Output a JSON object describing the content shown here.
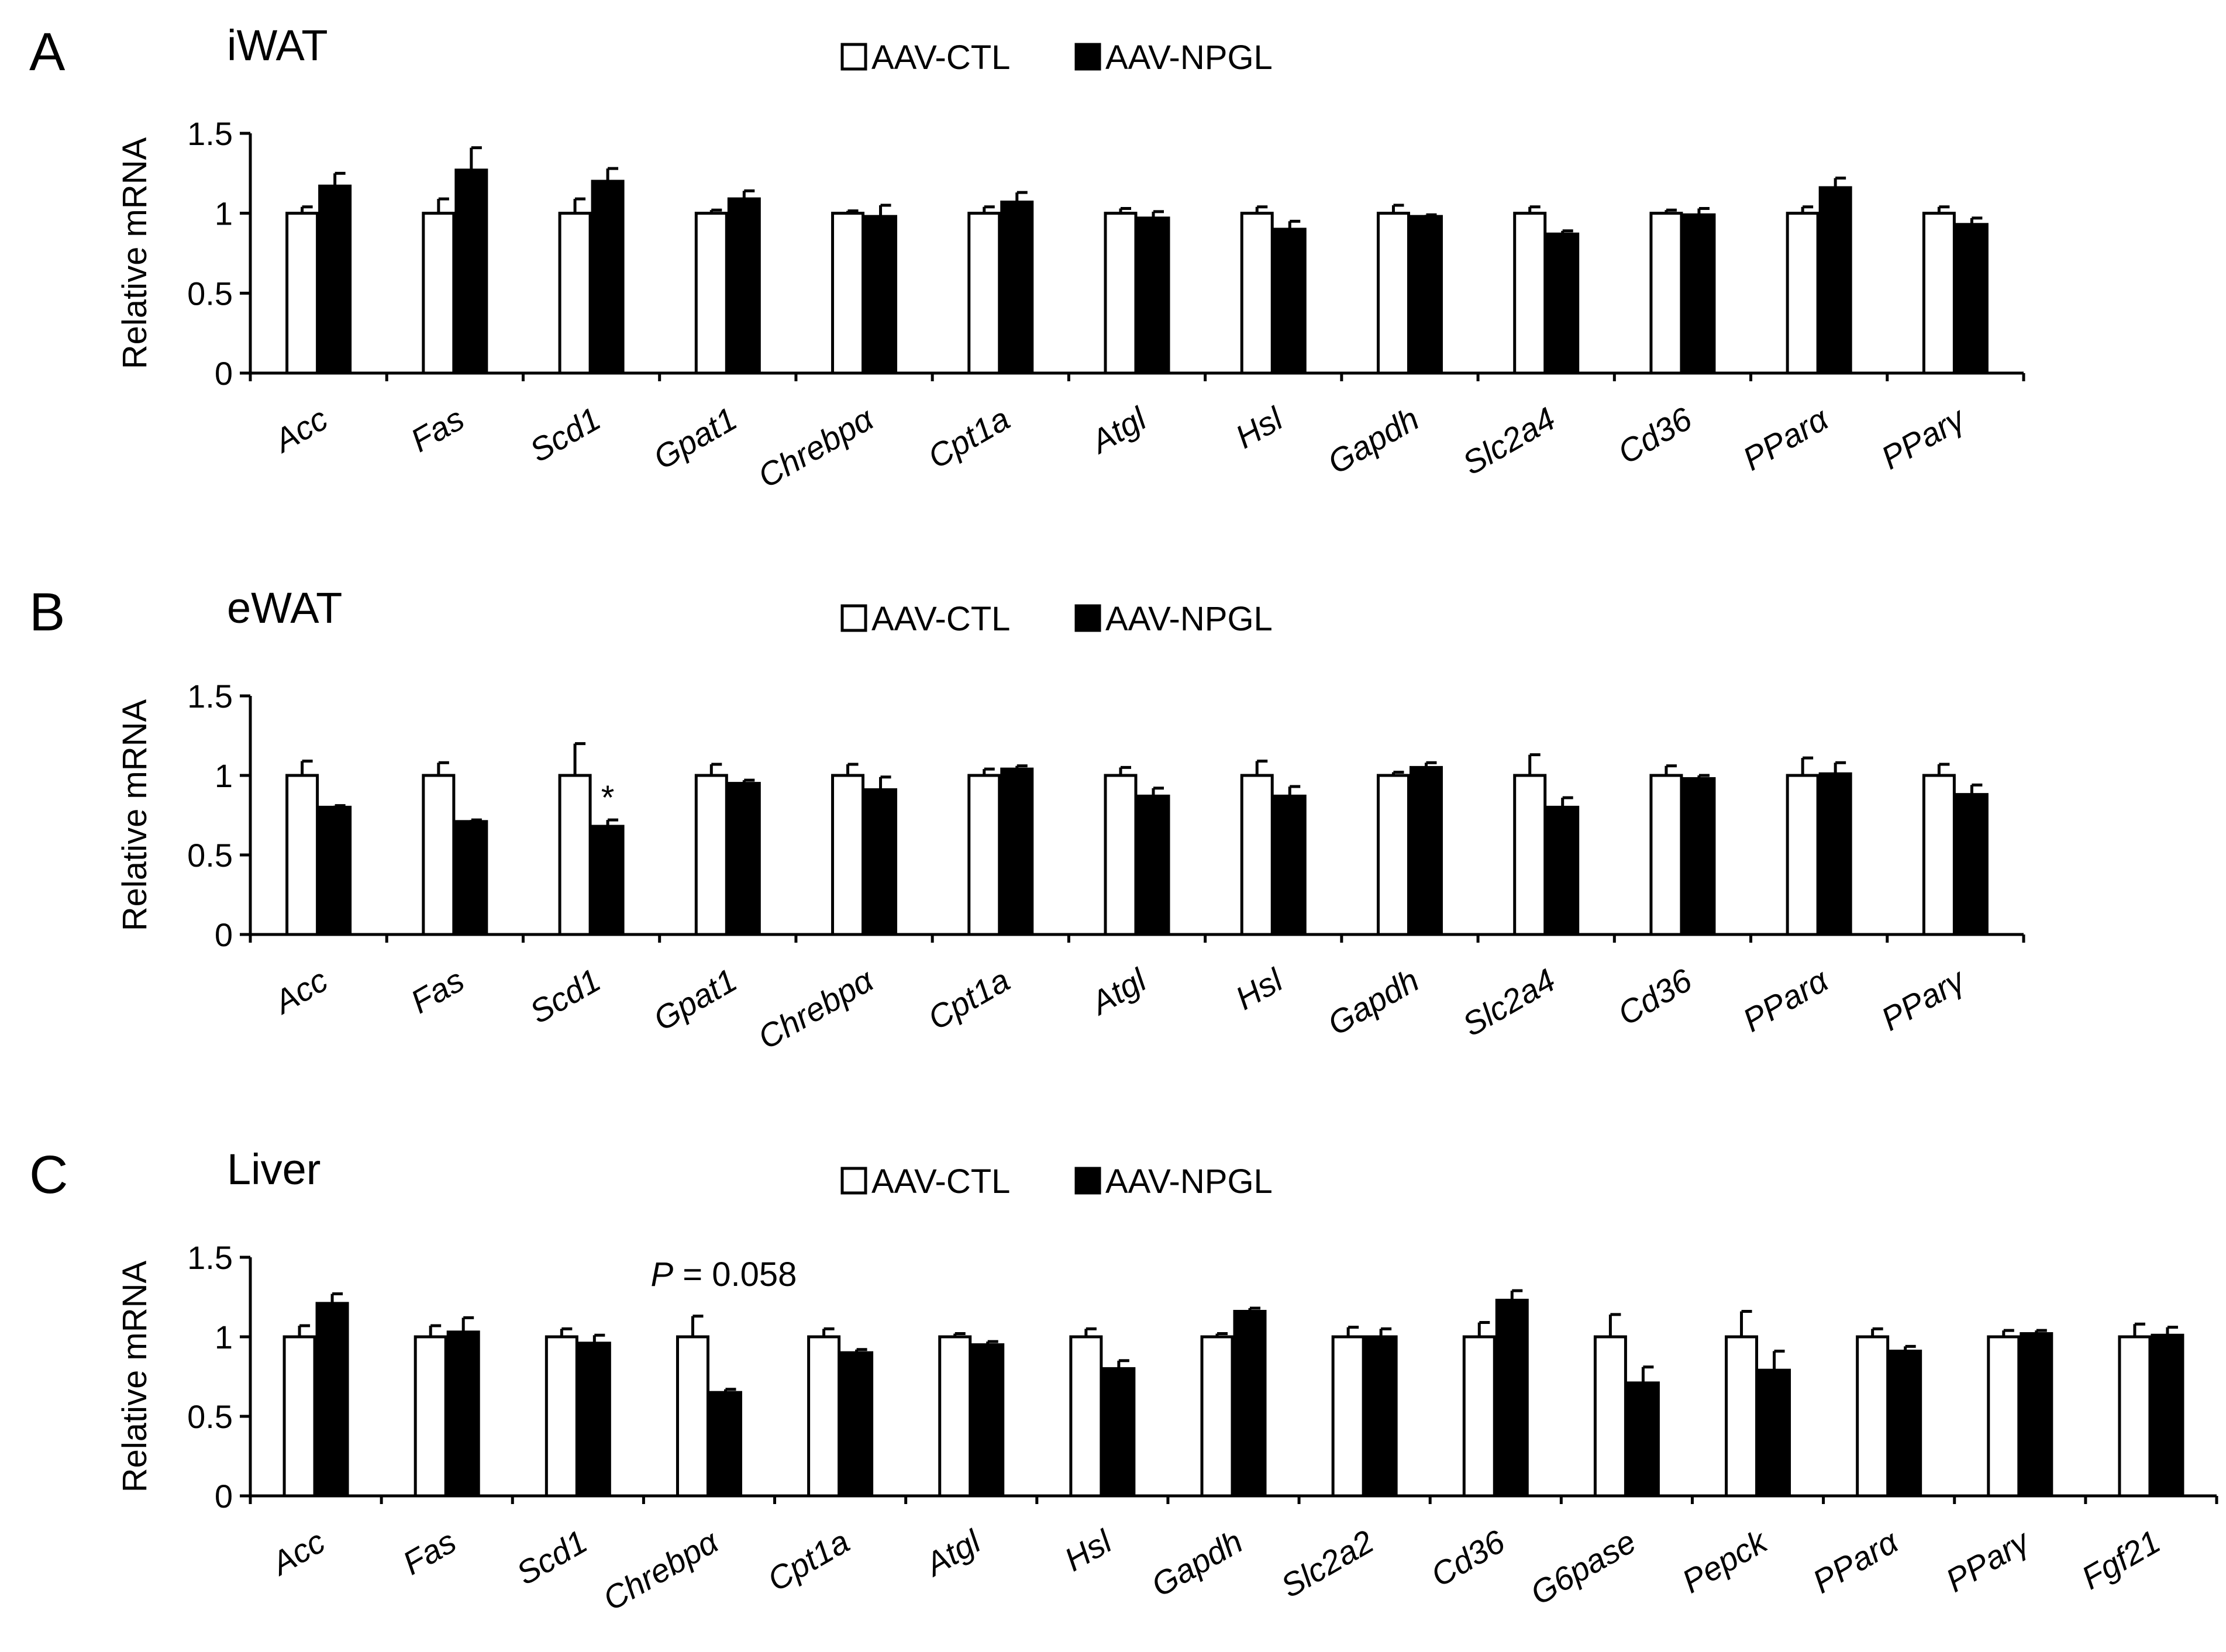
{
  "legend": {
    "ctl": "AAV-CTL",
    "npgl": "AAV-NPGL"
  },
  "colors": {
    "ctl_fill": "#ffffff",
    "npgl_fill": "#000000",
    "stroke": "#000000"
  },
  "chart_data": [
    {
      "type": "bar",
      "panel": "A",
      "title": "iWAT",
      "xlabel": "",
      "ylabel": "Relative mRNA",
      "ylim": [
        0,
        1.5
      ],
      "yticks": [
        "0",
        "0.5",
        "1",
        "1.5"
      ],
      "categories": [
        "Acc",
        "Fas",
        "Scd1",
        "Gpat1",
        "Chrebpα",
        "Cpt1a",
        "Atgl",
        "Hsl",
        "Gapdh",
        "Slc2a4",
        "Cd36",
        "PParα",
        "PParγ"
      ],
      "series": [
        {
          "name": "AAV-CTL",
          "values": [
            1.0,
            1.0,
            1.0,
            1.0,
            1.0,
            1.0,
            1.0,
            1.0,
            1.0,
            1.0,
            1.0,
            1.0,
            1.0
          ],
          "errors": [
            0.04,
            0.09,
            0.09,
            0.02,
            0.015,
            0.04,
            0.03,
            0.04,
            0.05,
            0.04,
            0.02,
            0.04,
            0.04
          ]
        },
        {
          "name": "AAV-NPGL",
          "values": [
            1.17,
            1.27,
            1.2,
            1.09,
            0.98,
            1.07,
            0.97,
            0.9,
            0.98,
            0.87,
            0.99,
            1.16,
            0.93
          ],
          "errors": [
            0.08,
            0.14,
            0.08,
            0.05,
            0.07,
            0.06,
            0.04,
            0.05,
            0.01,
            0.02,
            0.04,
            0.06,
            0.04
          ]
        }
      ],
      "annotations": []
    },
    {
      "type": "bar",
      "panel": "B",
      "title": "eWAT",
      "xlabel": "",
      "ylabel": "Relative mRNA",
      "ylim": [
        0,
        1.5
      ],
      "yticks": [
        "0",
        "0.5",
        "1",
        "1.5"
      ],
      "categories": [
        "Acc",
        "Fas",
        "Scd1",
        "Gpat1",
        "Chrebpα",
        "Cpt1a",
        "Atgl",
        "Hsl",
        "Gapdh",
        "Slc2a4",
        "Cd36",
        "PParα",
        "PParγ"
      ],
      "series": [
        {
          "name": "AAV-CTL",
          "values": [
            1.0,
            1.0,
            1.0,
            1.0,
            1.0,
            1.0,
            1.0,
            1.0,
            1.0,
            1.0,
            1.0,
            1.0,
            1.0
          ],
          "errors": [
            0.09,
            0.08,
            0.2,
            0.07,
            0.07,
            0.04,
            0.05,
            0.09,
            0.02,
            0.13,
            0.06,
            0.11,
            0.07
          ]
        },
        {
          "name": "AAV-NPGL",
          "values": [
            0.8,
            0.71,
            0.68,
            0.95,
            0.91,
            1.04,
            0.87,
            0.87,
            1.05,
            0.8,
            0.98,
            1.01,
            0.88
          ],
          "errors": [
            0.01,
            0.01,
            0.04,
            0.02,
            0.08,
            0.02,
            0.05,
            0.06,
            0.03,
            0.06,
            0.02,
            0.07,
            0.06
          ]
        }
      ],
      "annotations": [
        {
          "category": "Scd1",
          "series": "AAV-NPGL",
          "text": "*"
        }
      ]
    },
    {
      "type": "bar",
      "panel": "C",
      "title": "Liver",
      "xlabel": "",
      "ylabel": "Relative mRNA",
      "ylim": [
        0,
        1.5
      ],
      "yticks": [
        "0",
        "0.5",
        "1",
        "1.5"
      ],
      "categories": [
        "Acc",
        "Fas",
        "Scd1",
        "Chrebpα",
        "Cpt1a",
        "Atgl",
        "Hsl",
        "Gapdh",
        "Slc2a2",
        "Cd36",
        "G6pase",
        "Pepck",
        "PParα",
        "PParγ",
        "Fgf21"
      ],
      "series": [
        {
          "name": "AAV-CTL",
          "values": [
            1.0,
            1.0,
            1.0,
            1.0,
            1.0,
            1.0,
            1.0,
            1.0,
            1.0,
            1.0,
            1.0,
            1.0,
            1.0,
            1.0,
            1.0
          ],
          "errors": [
            0.07,
            0.07,
            0.05,
            0.13,
            0.05,
            0.02,
            0.05,
            0.02,
            0.06,
            0.09,
            0.14,
            0.16,
            0.05,
            0.04,
            0.08
          ]
        },
        {
          "name": "AAV-NPGL",
          "values": [
            1.21,
            1.03,
            0.96,
            0.65,
            0.9,
            0.95,
            0.8,
            1.16,
            1.0,
            1.23,
            0.71,
            0.79,
            0.91,
            1.02,
            1.01
          ],
          "errors": [
            0.06,
            0.09,
            0.05,
            0.02,
            0.02,
            0.02,
            0.05,
            0.02,
            0.05,
            0.06,
            0.1,
            0.12,
            0.03,
            0.02,
            0.05
          ]
        }
      ],
      "annotations": [
        {
          "category": "Chrebpα",
          "p_label": "P",
          "p_text": " = 0.058"
        }
      ]
    }
  ]
}
